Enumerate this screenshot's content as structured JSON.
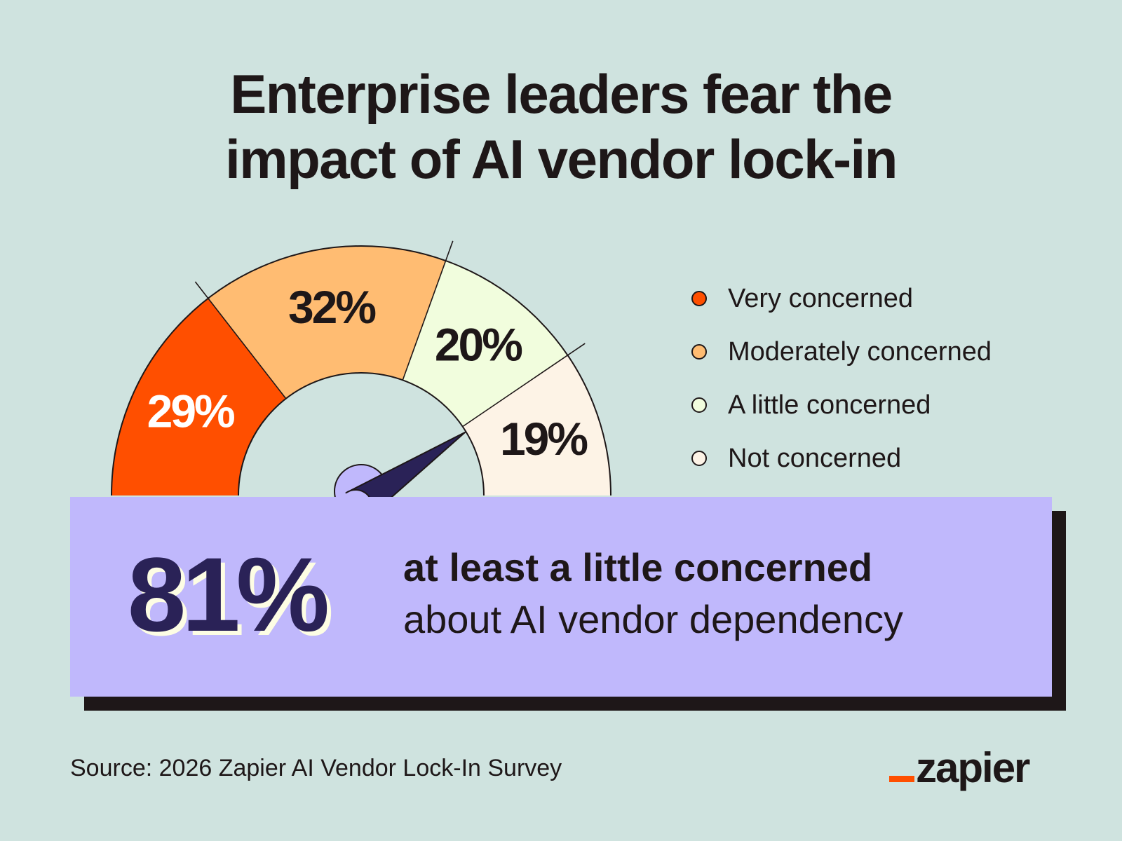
{
  "title": {
    "line1": "Enterprise leaders fear the",
    "line2": "impact of AI vendor lock-in"
  },
  "chart_data": {
    "type": "pie",
    "layout": "semicircle-gauge",
    "categories": [
      "Very concerned",
      "Moderately concerned",
      "A little concerned",
      "Not concerned"
    ],
    "values": [
      29,
      32,
      20,
      19
    ],
    "labels": [
      "29%",
      "32%",
      "20%",
      "19%"
    ],
    "colors": [
      "#ff4f00",
      "#ffbc72",
      "#f1fddd",
      "#fdf3e6"
    ],
    "label_colors": [
      "#ffffff",
      "#1e1718",
      "#1e1718",
      "#1e1718"
    ],
    "needle_value": 81,
    "legend_position": "right"
  },
  "legend": [
    {
      "label": "Very concerned",
      "color": "#ff4f00"
    },
    {
      "label": "Moderately concerned",
      "color": "#ffbc72"
    },
    {
      "label": "A little concerned",
      "color": "#f1fddd"
    },
    {
      "label": "Not concerned",
      "color": "#fdf3e6"
    }
  ],
  "highlight": {
    "value": "81%",
    "line1": "at least a little concerned",
    "line2": "about AI vendor dependency"
  },
  "source": "Source: 2026 Zapier AI Vendor Lock-In Survey",
  "brand": {
    "name": "zapier",
    "accent": "#ff4f00"
  },
  "colors": {
    "background": "#cfe3df",
    "ink": "#1e1718",
    "panel": "#c0b8fc",
    "needle": "#2a2257"
  }
}
